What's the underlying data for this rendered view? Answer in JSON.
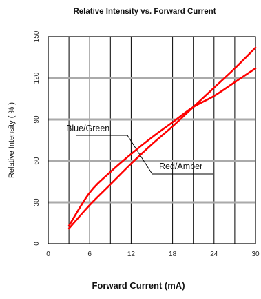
{
  "chart_data": {
    "type": "line",
    "title": "Relative Intensity vs. Forward Current",
    "xlabel": "Forward Current (mA)",
    "ylabel": "Relative Intensity ( % )",
    "xlim": [
      0,
      30
    ],
    "ylim": [
      0,
      150
    ],
    "x_ticks": [
      "0",
      "6",
      "12",
      "18",
      "24",
      "30"
    ],
    "y_ticks": [
      "0",
      "30",
      "60",
      "90",
      "120",
      "150"
    ],
    "grid": true,
    "series": [
      {
        "name": "Blue/Green",
        "color": "#ff0000",
        "x": [
          3,
          6,
          9,
          12,
          15,
          18,
          21,
          24,
          27,
          30
        ],
        "y": [
          13,
          37,
          52,
          65,
          77,
          88,
          99,
          107,
          117,
          127
        ]
      },
      {
        "name": "Red/Amber",
        "color": "#ff0000",
        "x": [
          3,
          6,
          9,
          12,
          15,
          18,
          21,
          24,
          27,
          30
        ],
        "y": [
          11,
          28,
          43,
          58,
          72,
          85,
          99,
          113,
          127,
          142
        ]
      }
    ],
    "annotations": [
      {
        "text": "Blue/Green",
        "series": "Blue/Green"
      },
      {
        "text": "Red/Amber",
        "series": "Red/Amber"
      }
    ]
  }
}
